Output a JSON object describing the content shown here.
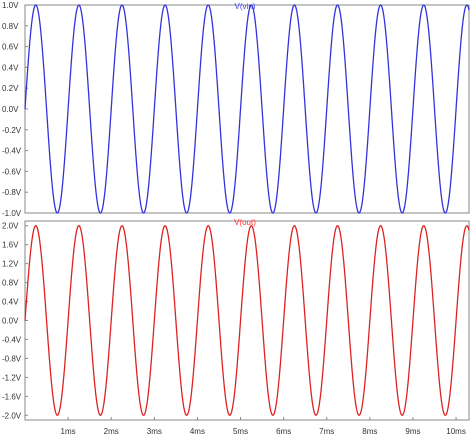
{
  "chart_data": [
    {
      "type": "line",
      "title": "V(vin)",
      "title_color": "#4040ff",
      "line_color": "#3333dd",
      "x_unit": "ms",
      "y_unit": "V",
      "xlim": [
        0,
        10.3
      ],
      "ylim": [
        -1.0,
        1.0
      ],
      "y_ticks": [
        "1.0V",
        "0.8V",
        "0.6V",
        "0.4V",
        "0.2V",
        "0.0V",
        "-0.2V",
        "-0.4V",
        "-0.6V",
        "-0.8V",
        "-1.0V"
      ],
      "y_tick_values": [
        1.0,
        0.8,
        0.6,
        0.4,
        0.2,
        0.0,
        -0.2,
        -0.4,
        -0.6,
        -0.8,
        -1.0
      ],
      "waveform": {
        "shape": "sine",
        "amplitude": 1.0,
        "frequency_khz": 1.0,
        "offset": 0.0,
        "x_start": 0,
        "x_end": 10.3
      }
    },
    {
      "type": "line",
      "title": "V(out)",
      "title_color": "#ff3030",
      "line_color": "#dd2222",
      "x_unit": "ms",
      "y_unit": "V",
      "xlim": [
        0,
        10.3
      ],
      "ylim": [
        -2.1,
        2.1
      ],
      "y_ticks": [
        "2.0V",
        "1.6V",
        "1.2V",
        "0.8V",
        "0.4V",
        "0.0V",
        "-0.4V",
        "-0.8V",
        "-1.2V",
        "-1.6V",
        "-2.0V"
      ],
      "y_tick_values": [
        2.0,
        1.6,
        1.2,
        0.8,
        0.4,
        0.0,
        -0.4,
        -0.8,
        -1.2,
        -1.6,
        -2.0
      ],
      "x_ticks": [
        "1ms",
        "2ms",
        "3ms",
        "4ms",
        "5ms",
        "6ms",
        "7ms",
        "8ms",
        "9ms",
        "10ms"
      ],
      "x_tick_values": [
        1,
        2,
        3,
        4,
        5,
        6,
        7,
        8,
        9,
        10
      ],
      "waveform": {
        "shape": "sine",
        "amplitude": 2.0,
        "frequency_khz": 1.0,
        "offset": 0.0,
        "x_start": 0,
        "x_end": 10.3
      }
    }
  ]
}
